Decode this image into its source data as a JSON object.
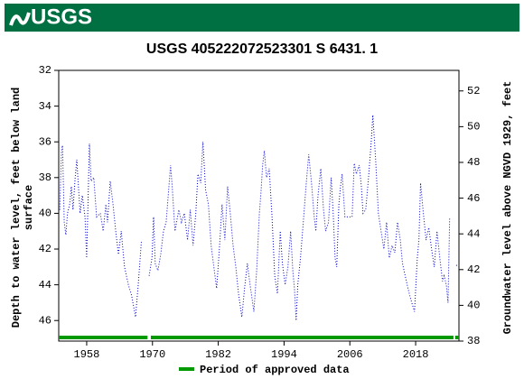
{
  "header": {
    "logo": "USGS"
  },
  "chart_data": {
    "type": "line",
    "title": "USGS 405222072523301 S  6431. 1",
    "ylabel": [
      "Depth to water level, feet below land",
      "surface"
    ],
    "y2label": "Groundwater level above NGVD 1929, feet",
    "xlim": [
      1952.9,
      2025.9
    ],
    "xticks": [
      1958,
      1970,
      1982,
      1994,
      2006,
      2018
    ],
    "ylim": [
      32,
      47.15
    ],
    "yticks": [
      32,
      34,
      36,
      38,
      40,
      42,
      44,
      46
    ],
    "y_inverted": true,
    "y2lim": [
      38,
      53.15
    ],
    "y2ticks": [
      38,
      40,
      42,
      44,
      46,
      48,
      50,
      52
    ],
    "x": [
      1953.1,
      1953.4,
      1953.6,
      1953.9,
      1954.2,
      1954.5,
      1954.9,
      1955.2,
      1955.5,
      1955.9,
      1956.2,
      1956.5,
      1956.8,
      1957.2,
      1957.7,
      1958.0,
      1958.5,
      1958.8,
      1959.3,
      1959.8,
      1960.5,
      1961.0,
      1961.5,
      1961.8,
      1962.3,
      1962.8,
      1963.3,
      1963.8,
      1964.3,
      1964.9,
      1965.6,
      1966.2,
      1966.9,
      1967.4,
      1968.0,
      1968.7,
      1969.4,
      1969.9,
      1970.2,
      1970.5,
      1971.0,
      1971.5,
      1972.0,
      1972.5,
      1973.3,
      1973.6,
      1974.1,
      1974.8,
      1975.3,
      1975.8,
      1976.4,
      1976.9,
      1977.4,
      1977.9,
      1978.3,
      1978.8,
      1979.2,
      1979.7,
      1980.2,
      1980.7,
      1981.2,
      1981.7,
      1982.2,
      1982.7,
      1983.2,
      1983.7,
      1984.2,
      1984.7,
      1985.2,
      1985.7,
      1986.3,
      1986.8,
      1987.3,
      1987.8,
      1988.5,
      1989.0,
      1989.5,
      1989.8,
      1990.1,
      1990.4,
      1990.8,
      1991.3,
      1991.8,
      1992.3,
      1992.8,
      1993.3,
      1993.7,
      1994.2,
      1994.7,
      1995.2,
      1995.6,
      1995.9,
      1996.2,
      1996.5,
      1997.0,
      1997.5,
      1998.0,
      1998.5,
      1999.0,
      1999.5,
      1999.8,
      2000.2,
      2000.7,
      2001.2,
      2001.6,
      2002.1,
      2002.6,
      2003.0,
      2003.3,
      2003.6,
      2004.0,
      2004.3,
      2004.6,
      2005.1,
      2005.8,
      2006.4,
      2006.8,
      2007.2,
      2007.7,
      2008.1,
      2008.4,
      2008.9,
      2009.4,
      2009.9,
      2010.2,
      2010.7,
      2011.2,
      2011.7,
      2012.2,
      2012.7,
      2013.2,
      2013.7,
      2014.2,
      2014.7,
      2015.2,
      2015.6,
      2016.1,
      2016.6,
      2017.1,
      2017.8,
      2018.3,
      2018.6,
      2018.9,
      2019.4,
      2019.9,
      2020.4,
      2020.9,
      2021.4,
      2021.9,
      2022.4,
      2022.9,
      2023.2,
      2023.6,
      2023.9,
      2024.2,
      2024.7,
      2025.4,
      2025.8
    ],
    "series": [
      {
        "color": "#0000cc",
        "values": [
          39.8,
          36.5,
          36.2,
          40.5,
          41.2,
          40.0,
          39.5,
          38.5,
          39.8,
          38.0,
          37.0,
          38.5,
          40.0,
          39.0,
          40.2,
          42.5,
          36.1,
          38.2,
          38.0,
          40.2,
          40.0,
          41.0,
          39.5,
          40.5,
          38.2,
          39.5,
          41.0,
          42.3,
          41.0,
          43.0,
          44.0,
          44.6,
          45.8,
          44.0,
          41.5,
          null,
          43.5,
          42.5,
          40.2,
          42.8,
          43.2,
          42.3,
          41.0,
          40.5,
          37.3,
          38.5,
          41.0,
          39.8,
          40.5,
          40.0,
          41.5,
          39.8,
          41.8,
          40.0,
          37.8,
          38.3,
          36.0,
          38.7,
          39.5,
          41.8,
          43.0,
          44.2,
          42.0,
          39.5,
          41.5,
          38.5,
          40.0,
          41.8,
          43.0,
          44.5,
          45.8,
          44.2,
          42.8,
          44.0,
          45.5,
          43.2,
          40.0,
          38.8,
          37.3,
          36.5,
          38.0,
          37.5,
          40.2,
          43.5,
          44.5,
          41.0,
          42.8,
          44.0,
          43.0,
          41.0,
          43.2,
          44.2,
          46.0,
          44.0,
          42.5,
          40.5,
          38.5,
          36.7,
          38.3,
          40.2,
          41.0,
          39.0,
          37.5,
          39.8,
          41.0,
          40.5,
          38.0,
          40.2,
          42.5,
          43.0,
          39.5,
          38.5,
          37.8,
          40.2,
          40.2,
          40.2,
          37.2,
          37.8,
          37.3,
          38.5,
          40.0,
          39.8,
          38.0,
          36.0,
          34.5,
          37.0,
          40.0,
          41.0,
          42.0,
          40.5,
          42.5,
          41.8,
          42.2,
          40.5,
          41.5,
          42.8,
          43.5,
          44.2,
          44.8,
          45.5,
          42.5,
          41.5,
          38.3,
          40.0,
          41.5,
          40.8,
          42.0,
          43.0,
          41.0,
          42.5,
          43.8,
          43.5,
          44.0,
          45.0,
          40.3,
          null,
          42.9,
          43.0
        ]
      }
    ],
    "approved_periods": [
      [
        1952.9,
        1969.1
      ],
      [
        1969.7,
        2024.9
      ],
      [
        2025.2,
        2025.9
      ]
    ],
    "approved_color": "#009900",
    "legend": "Period of approved data"
  }
}
